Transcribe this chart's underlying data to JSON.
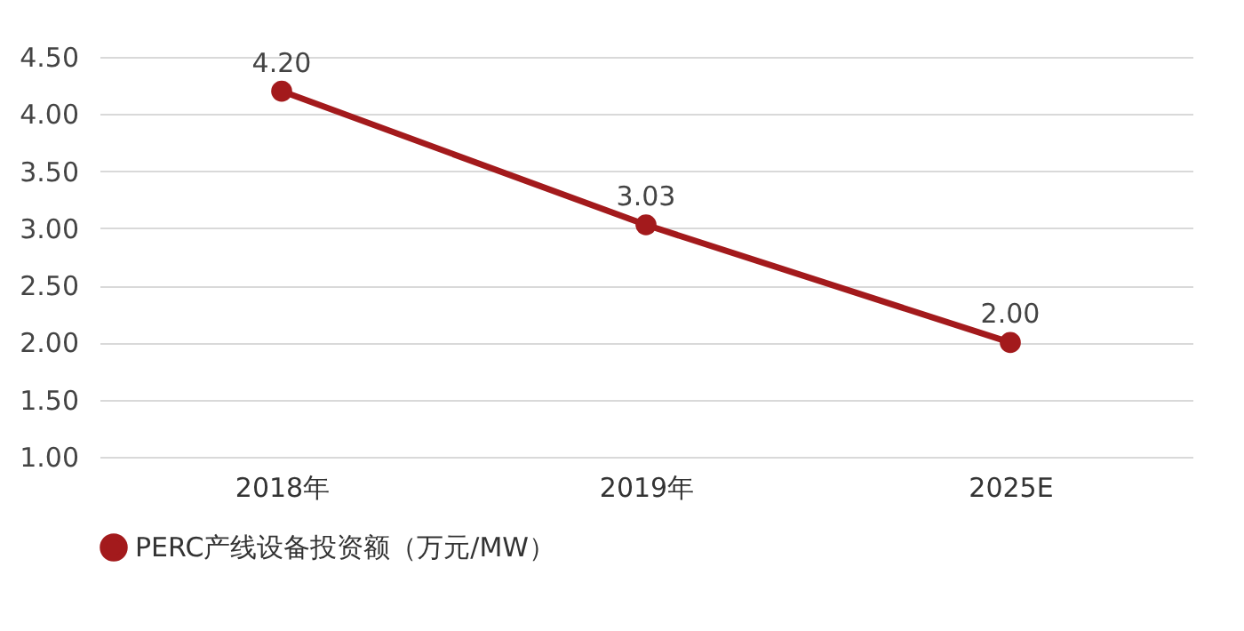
{
  "chart_data": {
    "type": "line",
    "categories": [
      "2018年",
      "2019年",
      "2025E"
    ],
    "series": [
      {
        "name": "PERC产线设备投资额（万元/MW）",
        "color": "#a31a1c",
        "values": [
          4.2,
          3.03,
          2.0
        ],
        "value_labels": [
          "4.20",
          "3.03",
          "2.00"
        ]
      }
    ],
    "ylim": [
      1,
      4.5
    ],
    "yticks": [
      {
        "value": 1,
        "label": "1.00"
      },
      {
        "value": 1.5,
        "label": "1.50"
      },
      {
        "value": 2,
        "label": "2.00"
      },
      {
        "value": 2.5,
        "label": "2.50"
      },
      {
        "value": 3,
        "label": "3.00"
      },
      {
        "value": 3.5,
        "label": "3.50"
      },
      {
        "value": 4,
        "label": "4.00"
      },
      {
        "value": 4.5,
        "label": "4.50"
      }
    ],
    "grid": "y",
    "legend": "bottom",
    "marker": "circle",
    "line_style": "solid"
  }
}
